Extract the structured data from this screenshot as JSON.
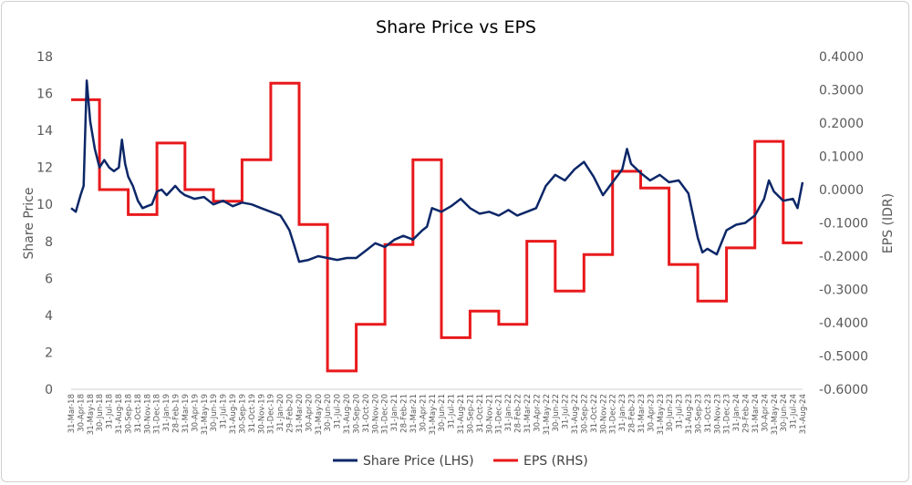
{
  "chart_data": {
    "type": "line",
    "title": "Share Price vs EPS",
    "y_left_label": "Share Price",
    "y_right_label": "EPS (IDR)",
    "y_left_lim": [
      0,
      18
    ],
    "y_left_ticks": [
      "0",
      "2",
      "4",
      "6",
      "8",
      "10",
      "12",
      "14",
      "16",
      "18"
    ],
    "y_right_lim": [
      -0.6,
      0.4
    ],
    "y_right_ticks": [
      "-0.6000",
      "-0.5000",
      "-0.4000",
      "-0.3000",
      "-0.2000",
      "-0.1000",
      "0.0000",
      "0.1000",
      "0.2000",
      "0.3000",
      "0.4000"
    ],
    "x_range": [
      "2018-03-31",
      "2024-08-31"
    ],
    "x_tick_labels": [
      "31-Mar-18",
      "30-Apr-18",
      "31-May-18",
      "30-Jun-18",
      "31-Jul-18",
      "31-Aug-18",
      "30-Sep-18",
      "31-Oct-18",
      "30-Nov-18",
      "31-Dec-18",
      "31-Jan-19",
      "28-Feb-19",
      "31-Mar-19",
      "30-Apr-19",
      "31-May-19",
      "30-Jun-19",
      "31-Jul-19",
      "31-Aug-19",
      "30-Sep-19",
      "31-Oct-19",
      "30-Nov-19",
      "31-Dec-19",
      "31-Jan-20",
      "29-Feb-20",
      "31-Mar-20",
      "30-Apr-20",
      "31-May-20",
      "30-Jun-20",
      "31-Jul-20",
      "31-Aug-20",
      "30-Sep-20",
      "31-Oct-20",
      "30-Nov-20",
      "31-Dec-20",
      "31-Jan-21",
      "28-Feb-21",
      "31-Mar-21",
      "30-Apr-21",
      "31-May-21",
      "30-Jun-21",
      "31-Jul-21",
      "31-Aug-21",
      "30-Sep-21",
      "31-Oct-21",
      "30-Nov-21",
      "31-Dec-21",
      "31-Jan-22",
      "28-Feb-22",
      "31-Mar-22",
      "30-Apr-22",
      "31-May-22",
      "30-Jun-22",
      "31-Jul-22",
      "31-Aug-22",
      "30-Sep-22",
      "31-Oct-22",
      "30-Nov-22",
      "31-Dec-22",
      "31-Jan-23",
      "28-Feb-23",
      "31-Mar-23",
      "30-Apr-23",
      "31-May-23",
      "30-Jun-23",
      "31-Jul-23",
      "31-Aug-23",
      "30-Sep-23",
      "31-Oct-23",
      "30-Nov-23",
      "31-Dec-23",
      "31-Jan-24",
      "29-Feb-24",
      "31-Mar-24",
      "30-Apr-24",
      "31-May-24",
      "30-Jun-24",
      "31-Jul-24",
      "31-Aug-24"
    ],
    "legend_position": "bottom",
    "grid": false,
    "series": [
      {
        "name": "Share Price (LHS)",
        "axis": "left",
        "color": "#0c2768",
        "x": [
          "2018-03-31",
          "2018-04-15",
          "2018-04-30",
          "2018-05-10",
          "2018-05-20",
          "2018-05-31",
          "2018-06-15",
          "2018-06-30",
          "2018-07-15",
          "2018-07-31",
          "2018-08-15",
          "2018-08-31",
          "2018-09-10",
          "2018-09-20",
          "2018-09-30",
          "2018-10-15",
          "2018-10-31",
          "2018-11-15",
          "2018-11-30",
          "2018-12-15",
          "2018-12-31",
          "2019-01-15",
          "2019-01-31",
          "2019-02-28",
          "2019-03-15",
          "2019-03-31",
          "2019-04-30",
          "2019-05-31",
          "2019-06-30",
          "2019-07-31",
          "2019-08-31",
          "2019-09-30",
          "2019-10-31",
          "2019-11-30",
          "2019-12-31",
          "2020-01-31",
          "2020-02-15",
          "2020-02-29",
          "2020-03-15",
          "2020-03-31",
          "2020-04-30",
          "2020-05-31",
          "2020-06-30",
          "2020-07-31",
          "2020-08-31",
          "2020-09-30",
          "2020-10-31",
          "2020-11-30",
          "2020-12-31",
          "2021-01-31",
          "2021-02-28",
          "2021-03-31",
          "2021-04-30",
          "2021-05-15",
          "2021-05-31",
          "2021-06-30",
          "2021-07-31",
          "2021-08-31",
          "2021-09-30",
          "2021-10-31",
          "2021-11-30",
          "2021-12-31",
          "2022-01-31",
          "2022-02-28",
          "2022-03-31",
          "2022-04-30",
          "2022-05-31",
          "2022-06-30",
          "2022-07-31",
          "2022-08-31",
          "2022-09-30",
          "2022-10-31",
          "2022-11-30",
          "2022-12-31",
          "2023-01-31",
          "2023-02-15",
          "2023-02-28",
          "2023-03-31",
          "2023-04-30",
          "2023-05-31",
          "2023-06-30",
          "2023-07-31",
          "2023-08-31",
          "2023-09-30",
          "2023-10-15",
          "2023-10-31",
          "2023-11-30",
          "2023-12-31",
          "2024-01-31",
          "2024-02-29",
          "2024-03-31",
          "2024-04-30",
          "2024-05-15",
          "2024-05-31",
          "2024-06-30",
          "2024-07-31",
          "2024-08-15",
          "2024-08-31"
        ],
        "values": [
          9.8,
          9.6,
          10.5,
          11.0,
          16.7,
          14.5,
          13.0,
          12.0,
          12.4,
          12.0,
          11.8,
          12.0,
          13.5,
          12.2,
          11.5,
          11.0,
          10.2,
          9.8,
          9.9,
          10.0,
          10.7,
          10.8,
          10.5,
          11.0,
          10.7,
          10.5,
          10.3,
          10.4,
          10.0,
          10.2,
          9.9,
          10.1,
          10.0,
          9.8,
          9.6,
          9.4,
          9.0,
          8.6,
          7.8,
          6.9,
          7.0,
          7.2,
          7.1,
          7.0,
          7.1,
          7.1,
          7.5,
          7.9,
          7.7,
          8.1,
          8.3,
          8.1,
          8.6,
          8.8,
          9.8,
          9.6,
          9.9,
          10.3,
          9.8,
          9.5,
          9.6,
          9.4,
          9.7,
          9.4,
          9.6,
          9.8,
          11.0,
          11.6,
          11.3,
          11.9,
          12.3,
          11.5,
          10.5,
          11.2,
          11.9,
          13.0,
          12.2,
          11.7,
          11.3,
          11.6,
          11.2,
          11.3,
          10.6,
          8.2,
          7.4,
          7.6,
          7.3,
          8.6,
          8.9,
          9.0,
          9.4,
          10.3,
          11.3,
          10.7,
          10.2,
          10.3,
          9.8,
          11.2
        ]
      },
      {
        "name": "EPS (RHS)",
        "axis": "right",
        "color": "#e8191c",
        "type": "step",
        "x": [
          "2018-03-31",
          "2018-06-30",
          "2018-09-30",
          "2018-12-31",
          "2019-03-31",
          "2019-06-30",
          "2019-09-30",
          "2019-12-31",
          "2020-03-31",
          "2020-06-30",
          "2020-09-30",
          "2020-12-31",
          "2021-03-31",
          "2021-06-30",
          "2021-09-30",
          "2021-12-31",
          "2022-03-31",
          "2022-06-30",
          "2022-09-30",
          "2022-12-31",
          "2023-03-31",
          "2023-06-30",
          "2023-09-30",
          "2023-12-31",
          "2024-03-31",
          "2024-06-30",
          "2024-08-31"
        ],
        "values": [
          0.27,
          0.0,
          -0.075,
          0.14,
          0.0,
          -0.035,
          0.09,
          0.32,
          -0.105,
          -0.545,
          -0.405,
          -0.165,
          0.09,
          -0.445,
          -0.365,
          -0.405,
          -0.155,
          -0.305,
          -0.195,
          0.055,
          0.005,
          -0.225,
          -0.335,
          -0.175,
          0.145,
          -0.16,
          -0.16
        ]
      }
    ]
  }
}
